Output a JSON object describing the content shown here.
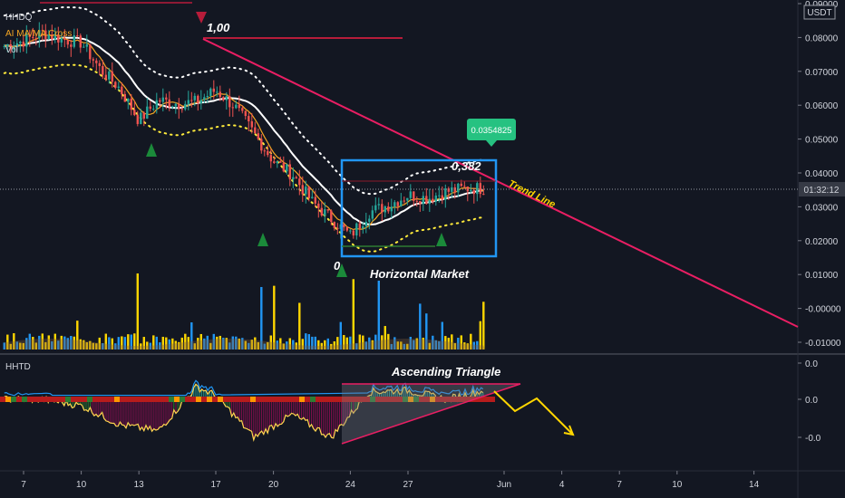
{
  "legend": {
    "symbol": "HHDQ",
    "indicator": "AI MA/MA Cross",
    "volume": "Vol"
  },
  "price_axis": {
    "currency": "USDT",
    "ticks": [
      "0.09000",
      "0.08000",
      "0.07000",
      "0.06000",
      "0.05000",
      "0.04000",
      "0.03000",
      "0.02000",
      "0.01000",
      "-0.00000",
      "-0.01000"
    ],
    "countdown": "01:32:12"
  },
  "oscillator": {
    "name": "HHTD",
    "ticks": [
      "0.0",
      "0.0",
      "-0.0"
    ]
  },
  "time_axis": {
    "ticks": [
      "7",
      "10",
      "13",
      "17",
      "20",
      "24",
      "27",
      "Jun",
      "4",
      "7",
      "10",
      "14"
    ]
  },
  "annotations": {
    "top_level": "1,00",
    "fib_level": "0,382",
    "zero_level": "0",
    "price_badge": "0.0354825",
    "trend_line": "Trend Line",
    "horizontal_market": "Horizontal Market",
    "ascending_triangle": "Ascending Triangle"
  },
  "colors": {
    "background": "#131722",
    "bull": "#26a69a",
    "bear": "#ef5350",
    "trend": "#e91e63",
    "box": "#2196f3",
    "ma_white": "#ffffff",
    "ma_orange": "#f5a623",
    "dots": "#ffeb3b",
    "badge": "#26c281",
    "arrow": "#ffd600"
  },
  "chart_data": {
    "type": "candlestick",
    "x_range": [
      "May 6",
      "Jun 16"
    ],
    "y_range": [
      -0.012,
      0.092
    ],
    "price_series": [
      {
        "date": "May 6",
        "close": 0.0775
      },
      {
        "date": "May 7",
        "close": 0.079
      },
      {
        "date": "May 8",
        "close": 0.0815
      },
      {
        "date": "May 9",
        "close": 0.0795
      },
      {
        "date": "May 10",
        "close": 0.0785
      },
      {
        "date": "May 11",
        "close": 0.0705
      },
      {
        "date": "May 12",
        "close": 0.065
      },
      {
        "date": "May 13",
        "close": 0.0555
      },
      {
        "date": "May 14",
        "close": 0.0615
      },
      {
        "date": "May 15",
        "close": 0.0605
      },
      {
        "date": "May 16",
        "close": 0.061
      },
      {
        "date": "May 17",
        "close": 0.0645
      },
      {
        "date": "May 18",
        "close": 0.0595
      },
      {
        "date": "May 19",
        "close": 0.0515
      },
      {
        "date": "May 20",
        "close": 0.0435
      },
      {
        "date": "May 21",
        "close": 0.0395
      },
      {
        "date": "May 22",
        "close": 0.0315
      },
      {
        "date": "May 23",
        "close": 0.0265
      },
      {
        "date": "May 24",
        "close": 0.0215
      },
      {
        "date": "May 25",
        "close": 0.0285
      },
      {
        "date": "May 26",
        "close": 0.0305
      },
      {
        "date": "May 27",
        "close": 0.0335
      },
      {
        "date": "May 28",
        "close": 0.0325
      },
      {
        "date": "May 29",
        "close": 0.0345
      },
      {
        "date": "May 30",
        "close": 0.0355
      },
      {
        "date": "May 31",
        "close": 0.0354825
      }
    ],
    "oscillator_series": [
      {
        "date": "May 6",
        "value": 0.0
      },
      {
        "date": "May 8",
        "value": 0.0
      },
      {
        "date": "May 10",
        "value": -0.005
      },
      {
        "date": "May 12",
        "value": -0.02
      },
      {
        "date": "May 14",
        "value": -0.025
      },
      {
        "date": "May 16",
        "value": 0.01
      },
      {
        "date": "May 17",
        "value": 0.003
      },
      {
        "date": "May 19",
        "value": -0.03
      },
      {
        "date": "May 21",
        "value": -0.012
      },
      {
        "date": "May 23",
        "value": -0.03
      },
      {
        "date": "May 25",
        "value": 0.006
      },
      {
        "date": "May 27",
        "value": 0.007
      },
      {
        "date": "May 29",
        "value": 0.0
      },
      {
        "date": "May 31",
        "value": 0.007
      }
    ]
  }
}
